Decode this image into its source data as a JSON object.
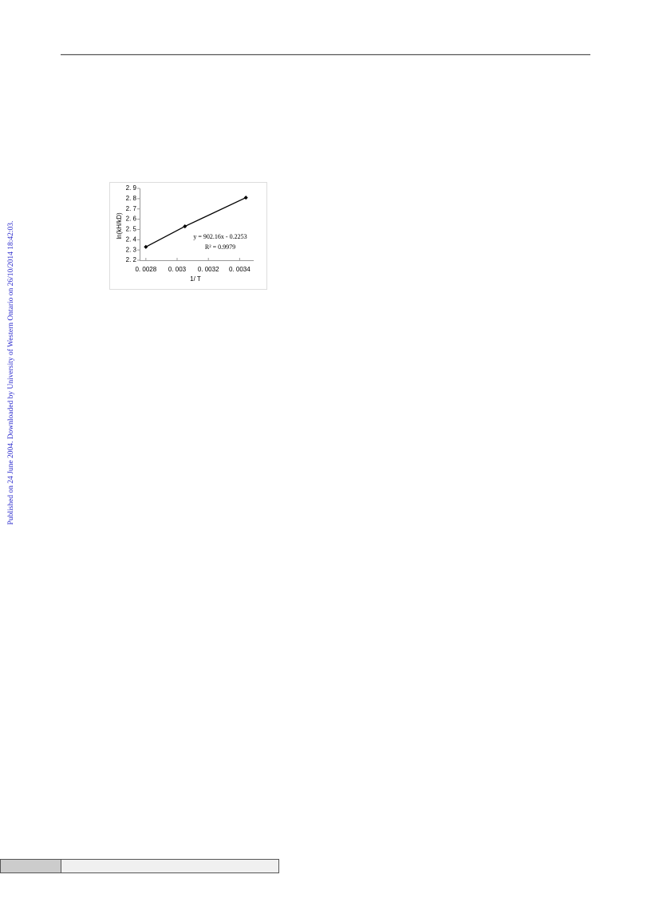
{
  "sidebar": "Published on 24 June 2004. Downloaded by University of Western Ontario on 26/10/2014 18:42:03.",
  "chart_data": {
    "type": "line",
    "xlabel": "1/ T",
    "ylabel": "ln(kH/kD)",
    "x": [
      0.0028,
      0.00305,
      0.00344
    ],
    "series": [
      {
        "values": [
          2.33,
          2.53,
          2.81
        ],
        "color": "#000000"
      }
    ],
    "xlim": [
      0.00276,
      0.00349
    ],
    "ylim": [
      2.2,
      2.9
    ],
    "xticks": [
      {
        "value": 0.0028,
        "label": "0. 0028"
      },
      {
        "value": 0.003,
        "label": "0. 003"
      },
      {
        "value": 0.0032,
        "label": "0. 0032"
      },
      {
        "value": 0.0034,
        "label": "0. 0034"
      }
    ],
    "yticks": [
      {
        "value": 2.2,
        "label": "2. 2"
      },
      {
        "value": 2.3,
        "label": "2. 3"
      },
      {
        "value": 2.4,
        "label": "2. 4"
      },
      {
        "value": 2.5,
        "label": "2. 5"
      },
      {
        "value": 2.6,
        "label": "2. 6"
      },
      {
        "value": 2.7,
        "label": "2. 7"
      },
      {
        "value": 2.8,
        "label": "2. 8"
      },
      {
        "value": 2.9,
        "label": "2. 9"
      }
    ],
    "annotations": [
      "y = 902.16x - 0.2253",
      "R² = 0.9979"
    ],
    "grid": false
  }
}
